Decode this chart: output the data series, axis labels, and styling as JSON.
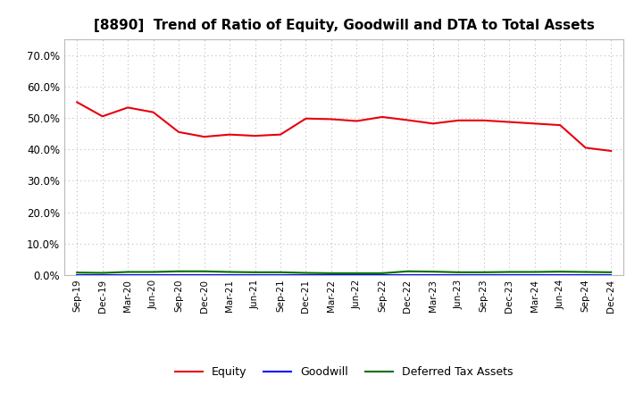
{
  "title": "[8890]  Trend of Ratio of Equity, Goodwill and DTA to Total Assets",
  "x_labels": [
    "Sep-19",
    "Dec-19",
    "Mar-20",
    "Jun-20",
    "Sep-20",
    "Dec-20",
    "Mar-21",
    "Jun-21",
    "Sep-21",
    "Dec-21",
    "Mar-22",
    "Jun-22",
    "Sep-22",
    "Dec-22",
    "Mar-23",
    "Jun-23",
    "Sep-23",
    "Dec-23",
    "Mar-24",
    "Jun-24",
    "Sep-24",
    "Dec-24"
  ],
  "equity": [
    0.55,
    0.505,
    0.533,
    0.518,
    0.455,
    0.44,
    0.447,
    0.443,
    0.447,
    0.498,
    0.496,
    0.49,
    0.503,
    0.493,
    0.482,
    0.492,
    0.492,
    0.487,
    0.482,
    0.477,
    0.405,
    0.395
  ],
  "goodwill": [
    0.0,
    0.0,
    0.0,
    0.0,
    0.0,
    0.0,
    0.0,
    0.0,
    0.0,
    0.0,
    0.0,
    0.0,
    0.0,
    0.0,
    0.0,
    0.0,
    0.0,
    0.0,
    0.0,
    0.0,
    0.0,
    0.0
  ],
  "dta": [
    0.008,
    0.007,
    0.01,
    0.01,
    0.012,
    0.012,
    0.01,
    0.009,
    0.009,
    0.007,
    0.006,
    0.006,
    0.006,
    0.012,
    0.011,
    0.009,
    0.009,
    0.01,
    0.01,
    0.011,
    0.01,
    0.009
  ],
  "equity_color": "#e8000d",
  "goodwill_color": "#0000ff",
  "dta_color": "#007000",
  "ylim": [
    0.0,
    0.75
  ],
  "yticks": [
    0.0,
    0.1,
    0.2,
    0.3,
    0.4,
    0.5,
    0.6,
    0.7
  ],
  "bg_color": "#ffffff",
  "plot_bg_color": "#ffffff",
  "grid_color": "#bbbbbb",
  "title_fontsize": 11,
  "legend_labels": [
    "Equity",
    "Goodwill",
    "Deferred Tax Assets"
  ]
}
